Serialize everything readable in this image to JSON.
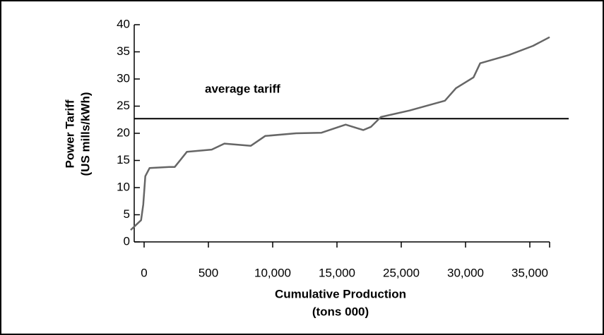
{
  "chart_data": {
    "type": "line",
    "y_label": [
      "Power Tariff",
      "(US mills/kWh)"
    ],
    "x_label": [
      "Cumulative Production",
      "(tons 000)"
    ],
    "x_tick_labels": [
      "0",
      "500",
      "10,000",
      "15,000",
      "25,000",
      "30,000",
      "35,000"
    ],
    "xlim": [
      -1200,
      36800
    ],
    "ylim": [
      0,
      40
    ],
    "yticks": [
      0,
      5,
      10,
      15,
      20,
      25,
      30,
      35,
      40
    ],
    "x": [
      -1200,
      -256,
      -60,
      128,
      513,
      2300,
      2800,
      3900,
      6150,
      7300,
      9700,
      11000,
      13800,
      16100,
      18300,
      19900,
      20600,
      21500,
      24100,
      27300,
      28300,
      29900,
      30500,
      33100,
      35300,
      36800
    ],
    "series": [
      {
        "color": "#666666",
        "values": [
          2.2,
          4.0,
          6.9,
          12.1,
          13.6,
          13.8,
          13.8,
          16.6,
          17.0,
          18.1,
          17.7,
          19.5,
          20.0,
          20.1,
          21.6,
          20.6,
          21.2,
          23.0,
          24.2,
          26.0,
          28.3,
          30.3,
          32.9,
          34.4,
          36.1,
          37.7
        ]
      }
    ],
    "average": {
      "label": "average tariff",
      "value": 22.7,
      "color": "#000000"
    }
  }
}
